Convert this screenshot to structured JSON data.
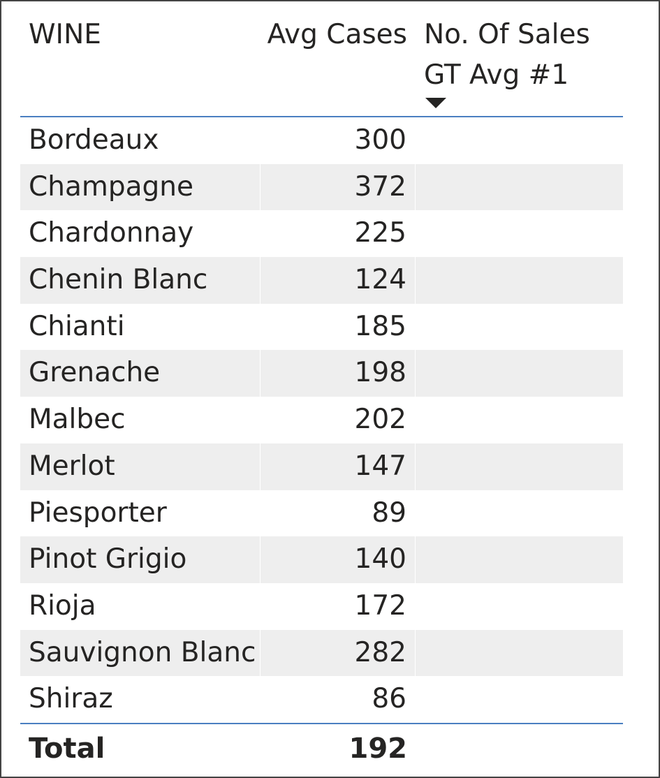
{
  "table": {
    "columns": {
      "wine": "WINE",
      "avg_cases": "Avg Cases",
      "sales_gt_avg_line1": "No. Of Sales",
      "sales_gt_avg_line2": "GT Avg #1"
    },
    "sort_indicator": "sort-descending-icon",
    "rows": [
      {
        "wine": "Bordeaux",
        "avg_cases": "300",
        "sales_gt_avg": ""
      },
      {
        "wine": "Champagne",
        "avg_cases": "372",
        "sales_gt_avg": ""
      },
      {
        "wine": "Chardonnay",
        "avg_cases": "225",
        "sales_gt_avg": ""
      },
      {
        "wine": "Chenin Blanc",
        "avg_cases": "124",
        "sales_gt_avg": ""
      },
      {
        "wine": "Chianti",
        "avg_cases": "185",
        "sales_gt_avg": ""
      },
      {
        "wine": "Grenache",
        "avg_cases": "198",
        "sales_gt_avg": ""
      },
      {
        "wine": "Malbec",
        "avg_cases": "202",
        "sales_gt_avg": ""
      },
      {
        "wine": "Merlot",
        "avg_cases": "147",
        "sales_gt_avg": ""
      },
      {
        "wine": "Piesporter",
        "avg_cases": "89",
        "sales_gt_avg": ""
      },
      {
        "wine": "Pinot Grigio",
        "avg_cases": "140",
        "sales_gt_avg": ""
      },
      {
        "wine": "Rioja",
        "avg_cases": "172",
        "sales_gt_avg": ""
      },
      {
        "wine": "Sauvignon Blanc",
        "avg_cases": "282",
        "sales_gt_avg": ""
      },
      {
        "wine": "Shiraz",
        "avg_cases": "86",
        "sales_gt_avg": ""
      }
    ],
    "total": {
      "label": "Total",
      "avg_cases": "192",
      "sales_gt_avg": ""
    }
  },
  "colors": {
    "text": "#252423",
    "row_alt": "#eeeeee",
    "header_rule": "#4a7fc1",
    "frame": "#444444"
  }
}
